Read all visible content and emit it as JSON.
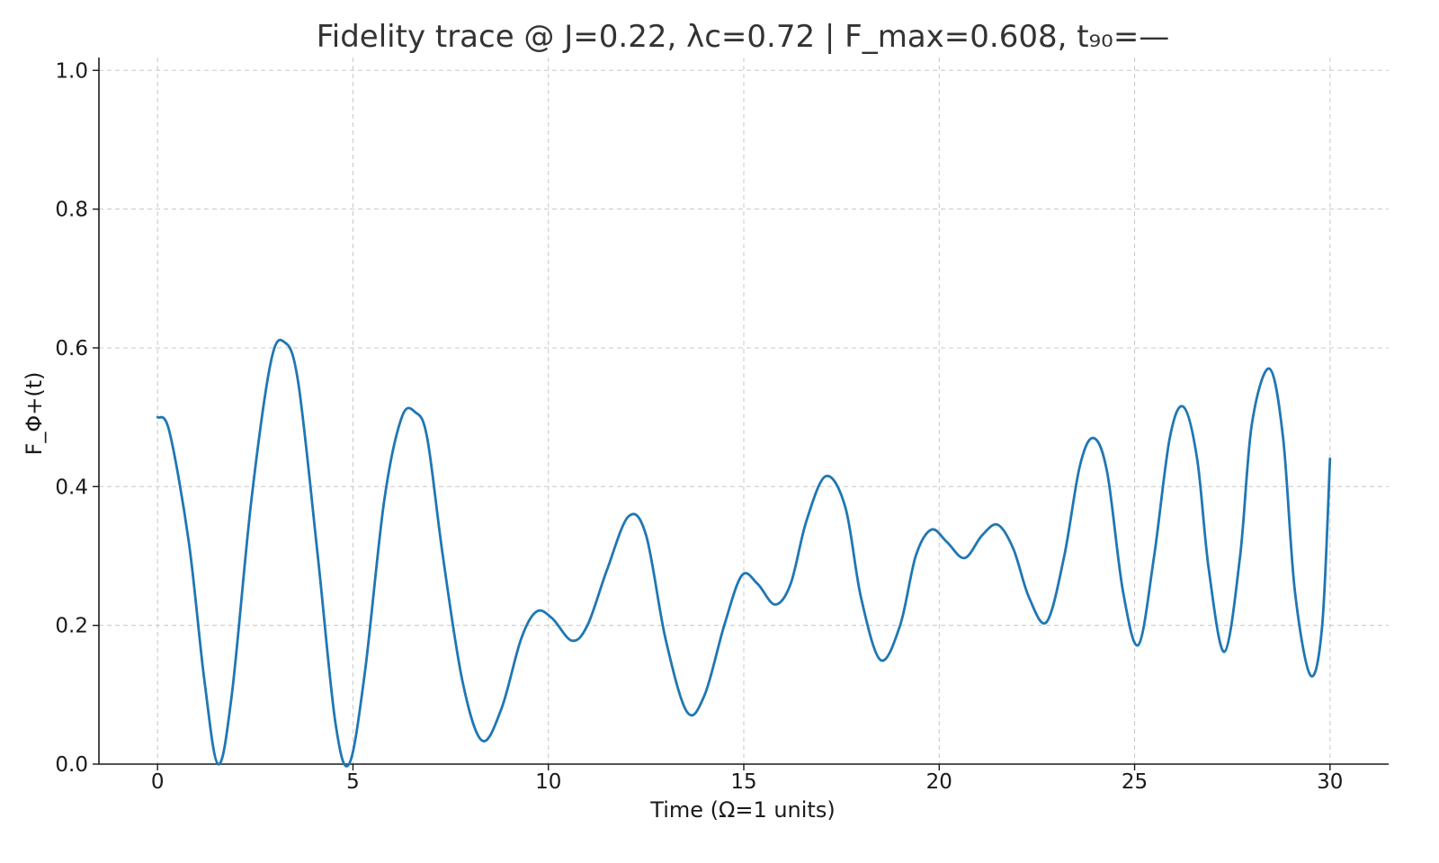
{
  "chart_data": {
    "type": "line",
    "title": "Fidelity trace @ J=0.22, λc=0.72 | F_max=0.608, t₉₀=—",
    "xlabel": "Time (Ω=1 units)",
    "ylabel": "F_Φ+(t)",
    "xlim": [
      -1.5,
      31.5
    ],
    "ylim": [
      0.0,
      1.0
    ],
    "xticks": [
      0,
      5,
      10,
      15,
      20,
      25,
      30
    ],
    "xtick_labels": [
      "0",
      "5",
      "10",
      "15",
      "20",
      "25",
      "30"
    ],
    "yticks": [
      0.0,
      0.2,
      0.4,
      0.6,
      0.8,
      1.0
    ],
    "ytick_labels": [
      "0.0",
      "0.2",
      "0.4",
      "0.6",
      "0.8",
      "1.0"
    ],
    "grid": true,
    "legend": "none",
    "colors": {
      "line": "#1f77b4",
      "grid": "#c8c8c8",
      "text": "#333333"
    },
    "series": [
      {
        "x": [
          0.0,
          0.3,
          0.8,
          1.2,
          1.55,
          1.9,
          2.4,
          2.9,
          3.25,
          3.6,
          4.1,
          4.55,
          4.9,
          5.3,
          5.8,
          6.25,
          6.6,
          6.9,
          7.3,
          7.8,
          8.3,
          8.8,
          9.3,
          9.7,
          10.1,
          10.6,
          11.0,
          11.5,
          12.05,
          12.5,
          13.0,
          13.55,
          14.0,
          14.5,
          14.95,
          15.35,
          15.8,
          16.2,
          16.6,
          17.1,
          17.6,
          18.0,
          18.5,
          19.0,
          19.4,
          19.8,
          20.2,
          20.65,
          21.1,
          21.5,
          21.9,
          22.3,
          22.75,
          23.2,
          23.6,
          23.95,
          24.3,
          24.7,
          25.1,
          25.5,
          25.9,
          26.25,
          26.6,
          26.9,
          27.3,
          27.7,
          28.0,
          28.45,
          28.8,
          29.1,
          29.5,
          29.8,
          30.0
        ],
        "y": [
          0.5,
          0.48,
          0.32,
          0.12,
          0.0,
          0.1,
          0.38,
          0.58,
          0.608,
          0.55,
          0.3,
          0.06,
          0.0,
          0.13,
          0.38,
          0.5,
          0.507,
          0.47,
          0.3,
          0.12,
          0.034,
          0.08,
          0.18,
          0.22,
          0.21,
          0.178,
          0.2,
          0.28,
          0.357,
          0.33,
          0.18,
          0.075,
          0.1,
          0.2,
          0.272,
          0.26,
          0.23,
          0.26,
          0.35,
          0.415,
          0.37,
          0.24,
          0.15,
          0.2,
          0.3,
          0.338,
          0.32,
          0.297,
          0.33,
          0.345,
          0.31,
          0.24,
          0.205,
          0.3,
          0.43,
          0.47,
          0.42,
          0.25,
          0.172,
          0.3,
          0.47,
          0.515,
          0.44,
          0.28,
          0.162,
          0.3,
          0.49,
          0.57,
          0.47,
          0.25,
          0.128,
          0.2,
          0.44
        ]
      }
    ]
  }
}
